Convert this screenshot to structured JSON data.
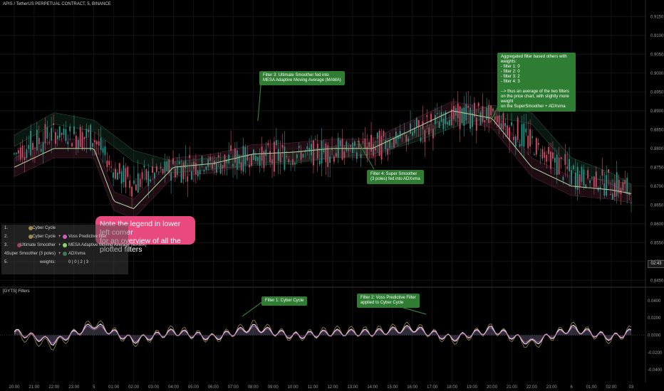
{
  "header": {
    "symbol_line": "APIS / TetherUS PERPETUAL CONTRACT, 5, BINANCE"
  },
  "sub_pane": {
    "title": "[GYTS] Filters"
  },
  "price_badge": "02:43",
  "colors": {
    "up": "#1e9e8f",
    "down": "#d64d6a",
    "band_green": "#3a7a5a",
    "band_red": "#a04060",
    "mesa": "#88d670",
    "cyber": "#9e8a4a",
    "voss": "#d060c0"
  },
  "annotations": {
    "pink_note": "Note the legend in lower left corner\nfor an overview of all the plotted filters",
    "filter3": "Filter 3: Ultimate Smoother fed into\nMESA Adaptive Moving Average (MAMA)",
    "filter4": "Filter 4: Super Smoother\n(3 poles) fed into ADXvma",
    "aggregated": "Aggregated filter based others with weights:\n- filter 1: 0\n- filter 2: 0\n- filter 3: 2\n- filter 4: 3\n\n--> thus an average of the two filters\non the price chart, with slightly more weight\non the SuperSmoother + ADXvma",
    "filter1": "Filter 1: Cyber Cycle",
    "filter2": "Filter 2: Voss Predictive Filter\napplied to Cyber Cycle"
  },
  "legend": {
    "rows": [
      {
        "num": "1.",
        "left": "Cyber Cycle",
        "plus": "",
        "right": ""
      },
      {
        "num": "2.",
        "left": "Cyber Cycle",
        "plus": "+",
        "right": "Voss Predictive filter"
      },
      {
        "num": "3.",
        "left": "Ultimate Smoother",
        "plus": "+",
        "right": "MESA Adaptive Moving Average (MAMA)"
      },
      {
        "num": "4.",
        "left": "Super Smoother (3 poles)",
        "plus": "+",
        "right": "ADXvma"
      },
      {
        "num": "5.",
        "left": "weights:",
        "plus": "",
        "right": "0 | 0 | 2 | 3"
      }
    ]
  },
  "chart_data": {
    "type": "line",
    "title": "APIS / TetherUS PERPETUAL CONTRACT, 5, BINANCE",
    "x_ticks": [
      "20:00",
      "21:00",
      "22:00",
      "23:00",
      "5",
      "01:00",
      "02:00",
      "03:00",
      "04:00",
      "05:00",
      "06:00",
      "07:00",
      "08:00",
      "09:00",
      "10:00",
      "11:00",
      "12:00",
      "13:00",
      "14:00",
      "15:00",
      "16:00",
      "17:00",
      "18:00",
      "19:00",
      "20:00",
      "21:00",
      "22:00",
      "23:00",
      "6",
      "01:00",
      "02:00",
      "03"
    ],
    "price_axis": {
      "ticks": [
        "0.9150",
        "0.9100",
        "0.9050",
        "0.9000",
        "0.8950",
        "0.8900",
        "0.8850",
        "0.8800",
        "0.8750",
        "0.8700",
        "0.8650",
        "0.8600",
        "0.8550",
        "0.8500",
        "0.8450"
      ],
      "range": [
        0.8443,
        0.9175
      ]
    },
    "osc_axis": {
      "ticks": [
        "0.0400",
        "0.0200",
        "0.0000",
        "-0.0200",
        "-0.0400"
      ],
      "range": [
        -0.044,
        0.044
      ]
    },
    "series": [
      {
        "name": "Ultimate Smoother + MESA Adaptive Moving Average (MAMA)",
        "pane": "price",
        "x": [
          0,
          2,
          4,
          5,
          6,
          8,
          10,
          12,
          14,
          16,
          18,
          20,
          22,
          24,
          26,
          28,
          30,
          31
        ],
        "values": [
          0.882,
          0.888,
          0.886,
          0.882,
          0.878,
          0.875,
          0.876,
          0.877,
          0.8775,
          0.879,
          0.88,
          0.883,
          0.887,
          0.89,
          0.888,
          0.876,
          0.872,
          0.869
        ]
      },
      {
        "name": "Super Smoother (3 poles) + ADXvma",
        "pane": "price",
        "x": [
          0,
          2,
          4,
          5,
          6,
          8,
          10,
          12,
          14,
          16,
          18,
          20,
          22,
          24,
          26,
          28,
          30,
          31
        ],
        "values": [
          0.875,
          0.88,
          0.88,
          0.866,
          0.864,
          0.875,
          0.876,
          0.8785,
          0.879,
          0.88,
          0.88,
          0.885,
          0.89,
          0.888,
          0.875,
          0.87,
          0.869,
          0.868
        ]
      },
      {
        "name": "Cyber Cycle",
        "pane": "osc",
        "x": [
          0,
          2,
          4,
          6,
          8,
          10,
          12,
          14,
          16,
          18,
          20,
          22,
          24,
          26,
          28,
          30,
          31
        ],
        "values": [
          0.001,
          -0.012,
          0.015,
          -0.008,
          0.006,
          -0.004,
          0.012,
          -0.002,
          0.005,
          0.004,
          0.01,
          -0.006,
          0.008,
          -0.012,
          0.01,
          -0.005,
          0.006
        ]
      },
      {
        "name": "Voss Predictive filter",
        "pane": "osc",
        "x": [
          0,
          2,
          4,
          6,
          8,
          10,
          12,
          14,
          16,
          18,
          20,
          22,
          24,
          26,
          28,
          30,
          31
        ],
        "values": [
          0.004,
          -0.008,
          0.012,
          -0.006,
          0.004,
          -0.003,
          0.009,
          -0.001,
          0.003,
          0.003,
          0.008,
          -0.004,
          0.007,
          -0.009,
          0.008,
          -0.003,
          0.004
        ]
      }
    ]
  }
}
